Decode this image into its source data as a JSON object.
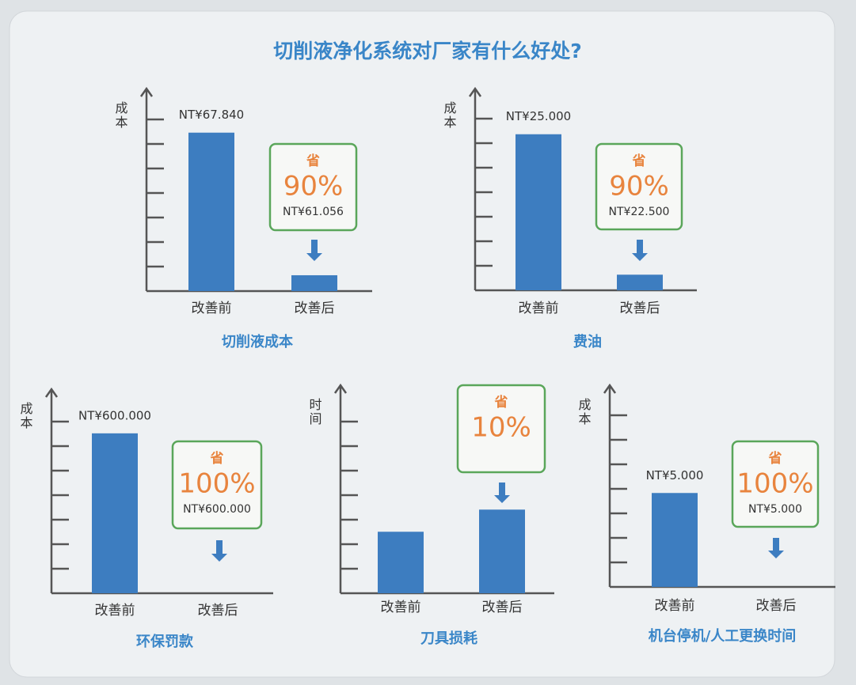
{
  "title": "切削液净化系统对厂家有什么好处?",
  "chart_data": [
    {
      "type": "bar",
      "title": "切削液成本",
      "y_label": "成本",
      "categories": [
        "改善前",
        "改善后"
      ],
      "values": [
        67.84,
        6.784
      ],
      "value_labels": [
        "NT¥67.840",
        null
      ],
      "ylim": [
        0,
        84
      ],
      "color": "#3d7dc0",
      "savings_box": {
        "label": "省",
        "percent": "90%",
        "amount": "NT¥61.056"
      }
    },
    {
      "type": "bar",
      "title": "费油",
      "y_label": "成本",
      "categories": [
        "改善前",
        "改善后"
      ],
      "values": [
        25.0,
        2.5
      ],
      "value_labels": [
        "NT¥25.000",
        null
      ],
      "ylim": [
        0,
        31.3
      ],
      "color": "#3d7dc0",
      "savings_box": {
        "label": "省",
        "percent": "90%",
        "amount": "NT¥22.500"
      }
    },
    {
      "type": "bar",
      "title": "环保罚款",
      "y_label": "成本",
      "categories": [
        "改善前",
        "改善后"
      ],
      "values": [
        600.0,
        0
      ],
      "value_labels": [
        "NT¥600.000",
        null
      ],
      "ylim": [
        0,
        742
      ],
      "color": "#3d7dc0",
      "savings_box": {
        "label": "省",
        "percent": "100%",
        "amount": "NT¥600.000"
      }
    },
    {
      "type": "bar",
      "title": "刀具损耗",
      "y_label": "时间",
      "categories": [
        "改善前",
        "改善后"
      ],
      "values": [
        2.5,
        3.4
      ],
      "value_labels": [
        null,
        null
      ],
      "ylim": [
        0,
        8.2
      ],
      "color": "#3d7dc0",
      "savings_box": {
        "label": "省",
        "percent": "10%"
      }
    },
    {
      "type": "bar",
      "title": "机台停机/人工更换时间",
      "y_label": "成本",
      "categories": [
        "改善前",
        "改善后"
      ],
      "values": [
        5.0,
        0
      ],
      "value_labels": [
        "NT¥5.000",
        null
      ],
      "ylim": [
        0,
        10.4
      ],
      "color": "#3d7dc0",
      "savings_box": {
        "label": "省",
        "percent": "100%",
        "amount": "NT¥5.000"
      }
    }
  ]
}
